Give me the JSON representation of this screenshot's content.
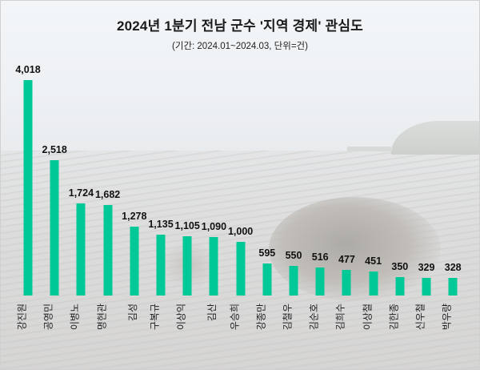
{
  "header": {
    "title": "2024년 1분기 전남 군수 '지역 경제' 관심도",
    "subtitle": "(기간: 2024.01~2024.03, 단위=건)"
  },
  "colors": {
    "bar": "#00c896",
    "text": "#111111"
  },
  "chart_data": {
    "type": "bar",
    "title": "2024년 1분기 전남 군수 '지역 경제' 관심도",
    "subtitle": "(기간: 2024.01~2024.03, 단위=건)",
    "xlabel": "",
    "ylabel": "",
    "categories": [
      "강진원",
      "공영민",
      "이병노",
      "명현관",
      "김성",
      "구복규",
      "이상익",
      "김산",
      "우승희",
      "강종만",
      "김철우",
      "김순호",
      "김희수",
      "이상철",
      "김한종",
      "신우철",
      "박우량"
    ],
    "values": [
      4018,
      2518,
      1724,
      1682,
      1278,
      1135,
      1105,
      1090,
      1000,
      595,
      550,
      516,
      477,
      451,
      350,
      329,
      328
    ],
    "value_labels": [
      "4,018",
      "2,518",
      "1,724",
      "1,682",
      "1,278",
      "1,135",
      "1,105",
      "1,090",
      "1,000",
      "595",
      "550",
      "516",
      "477",
      "451",
      "350",
      "329",
      "328"
    ],
    "ylim": [
      0,
      4018
    ],
    "grid": false,
    "legend": "none",
    "data_labels": true,
    "axis_labels_rotated": true
  }
}
